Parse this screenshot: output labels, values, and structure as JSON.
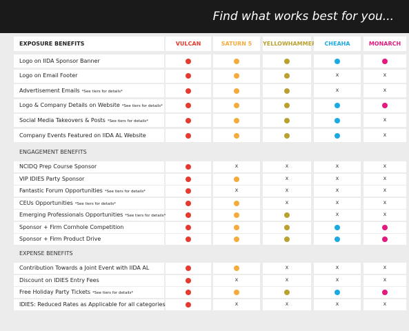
{
  "header": {
    "title": "Find what works best for you..."
  },
  "tiers": [
    {
      "name": "VULCAN",
      "color": "#e63a2e"
    },
    {
      "name": "SATURN 5",
      "color": "#f4ab3c"
    },
    {
      "name": "YELLOWHAMMER",
      "color": "#b9a131"
    },
    {
      "name": "CHEAHA",
      "color": "#1ba9e1"
    },
    {
      "name": "MONARCH",
      "color": "#e2197e"
    }
  ],
  "no_mark": "x",
  "sections": [
    {
      "title": "EXPOSURE BENEFITS",
      "rows": [
        {
          "label": "Logo on IIDA Sponsor Banner",
          "cells": [
            true,
            true,
            true,
            true,
            true
          ]
        },
        {
          "label": "Logo on Email Footer",
          "cells": [
            true,
            true,
            true,
            false,
            false
          ]
        },
        {
          "label": "Advertisement Emails",
          "note": "*See tiers for details*",
          "cells": [
            true,
            true,
            true,
            false,
            false
          ]
        },
        {
          "label": "Logo & Company Details on Website",
          "note": "*See tiers for details*",
          "cells": [
            true,
            true,
            true,
            true,
            true
          ]
        },
        {
          "label": "Social Media Takeovers & Posts",
          "note": "*See tiers for details*",
          "cells": [
            true,
            true,
            true,
            true,
            false
          ]
        },
        {
          "label": "Company Events Featured on IIDA AL Website",
          "cells": [
            true,
            true,
            true,
            true,
            false
          ]
        }
      ]
    },
    {
      "title": "ENGAGEMENT BENEFITS",
      "rows": [
        {
          "label": "NCIDQ Prep Course Sponsor",
          "cells": [
            true,
            false,
            false,
            false,
            false
          ]
        },
        {
          "label": "VIP IDIES Party Sponsor",
          "cells": [
            true,
            true,
            false,
            false,
            false
          ]
        },
        {
          "label": "Fantastic Forum Opportunities",
          "note": "*See tiers for details*",
          "cells": [
            true,
            false,
            false,
            false,
            false
          ]
        },
        {
          "label": "CEUs Opportunities",
          "note": "*See tiers for details*",
          "cells": [
            true,
            true,
            false,
            false,
            false
          ]
        },
        {
          "label": "Emerging Professionals Opportunities",
          "note": "*See tiers for details*",
          "cells": [
            true,
            true,
            true,
            false,
            false
          ]
        },
        {
          "label": "Sponsor + Firm Cornhole Competition",
          "cells": [
            true,
            true,
            true,
            true,
            true
          ]
        },
        {
          "label": "Sponsor + Firm Product Drive",
          "cells": [
            true,
            true,
            true,
            true,
            true
          ]
        }
      ]
    },
    {
      "title": "EXPENSE BENEFITS",
      "rows": [
        {
          "label": "Contribution Towards a Joint Event with IIDA AL",
          "cells": [
            true,
            true,
            false,
            false,
            false
          ]
        },
        {
          "label": "Discount on IDIES Entry Fees",
          "cells": [
            true,
            false,
            false,
            false,
            false
          ]
        },
        {
          "label": "Free Holiday Party Tickets",
          "note": "*See tiers for details*",
          "cells": [
            true,
            true,
            true,
            true,
            true
          ]
        },
        {
          "label": "IDIES: Reduced Rates as Applicable for all categories",
          "cells": [
            true,
            false,
            false,
            false,
            false
          ]
        }
      ]
    }
  ]
}
